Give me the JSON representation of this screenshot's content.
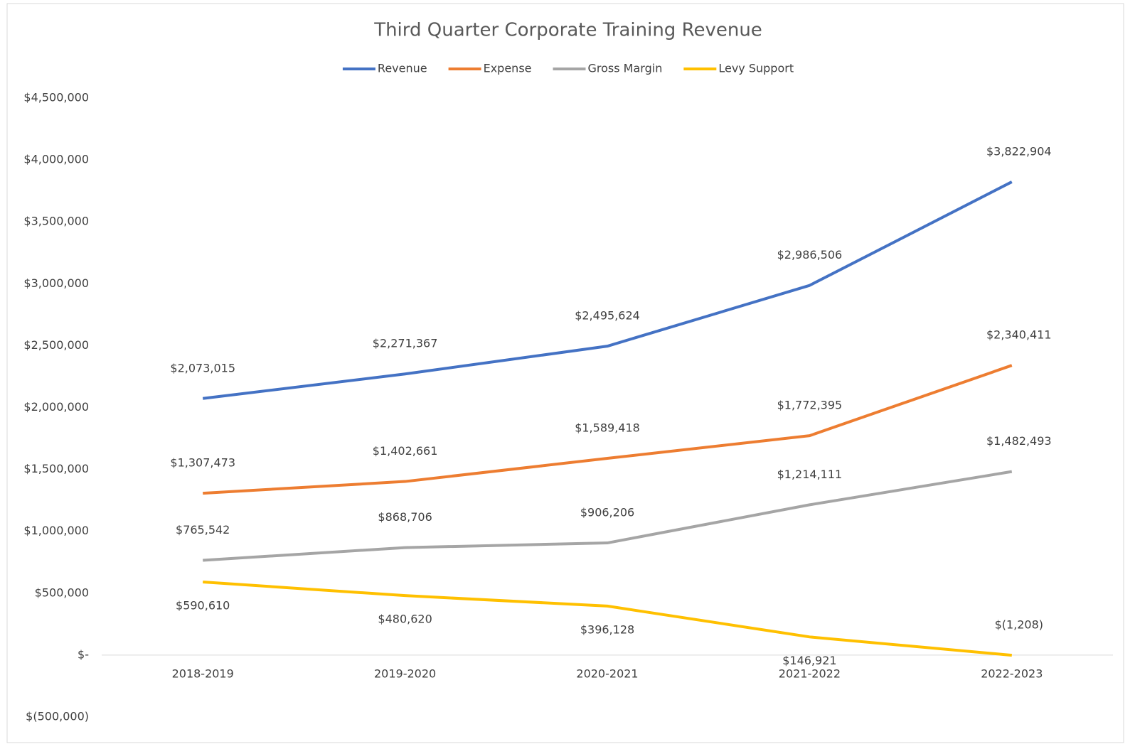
{
  "chart_data": {
    "type": "line",
    "title": "Third Quarter Corporate Training Revenue",
    "categories": [
      "2018-2019",
      "2019-2020",
      "2020-2021",
      "2021-2022",
      "2022-2023"
    ],
    "series": [
      {
        "name": "Revenue",
        "color": "#4472c4",
        "values": [
          2073015,
          2271367,
          2495624,
          2986506,
          3822904
        ],
        "value_labels": [
          "$2,073,015",
          "$2,271,367",
          "$2,495,624",
          "$2,986,506",
          "$3,822,904"
        ]
      },
      {
        "name": "Expense",
        "color": "#ed7d31",
        "values": [
          1307473,
          1402661,
          1589418,
          1772395,
          2340411
        ],
        "value_labels": [
          "$1,307,473",
          "$1,402,661",
          "$1,589,418",
          "$1,772,395",
          "$2,340,411"
        ]
      },
      {
        "name": "Gross Margin",
        "color": "#a5a5a5",
        "values": [
          765542,
          868706,
          906206,
          1214111,
          1482493
        ],
        "value_labels": [
          "$765,542",
          "$868,706",
          "$906,206",
          "$1,214,111",
          "$1,482,493"
        ]
      },
      {
        "name": "Levy Support",
        "color": "#ffc000",
        "values": [
          590610,
          480620,
          396128,
          146921,
          -1208
        ],
        "value_labels": [
          "$590,610",
          "$480,620",
          "$396,128",
          "$146,921",
          "$(1,208)"
        ]
      }
    ],
    "ylim": [
      -500000,
      4500000
    ],
    "yticks": [
      {
        "value": -500000,
        "label": "$(500,000)"
      },
      {
        "value": 0,
        "label": "$-"
      },
      {
        "value": 500000,
        "label": "$500,000"
      },
      {
        "value": 1000000,
        "label": "$1,000,000"
      },
      {
        "value": 1500000,
        "label": "$1,500,000"
      },
      {
        "value": 2000000,
        "label": "$2,000,000"
      },
      {
        "value": 2500000,
        "label": "$2,500,000"
      },
      {
        "value": 3000000,
        "label": "$3,000,000"
      },
      {
        "value": 3500000,
        "label": "$3,500,000"
      },
      {
        "value": 4000000,
        "label": "$4,000,000"
      },
      {
        "value": 4500000,
        "label": "$4,500,000"
      }
    ],
    "grid": false,
    "legend": "top"
  }
}
